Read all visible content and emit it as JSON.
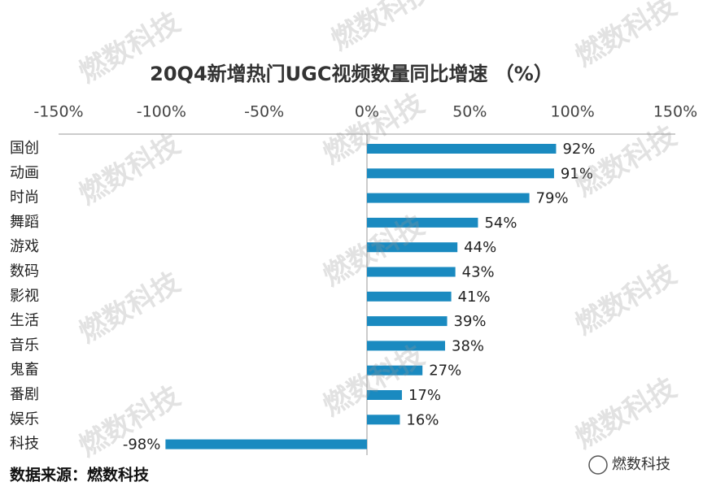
{
  "chart_data": {
    "type": "bar",
    "title": "20Q4新增热门UGC视频数量同比增速 （%）",
    "categories": [
      "国创",
      "动画",
      "时尚",
      "舞蹈",
      "游戏",
      "数码",
      "影视",
      "生活",
      "音乐",
      "鬼畜",
      "番剧",
      "娱乐",
      "科技"
    ],
    "values": [
      92,
      91,
      79,
      54,
      44,
      43,
      41,
      39,
      38,
      27,
      17,
      16,
      -98
    ],
    "value_labels": [
      "92%",
      "91%",
      "79%",
      "54%",
      "44%",
      "43%",
      "41%",
      "39%",
      "38%",
      "27%",
      "17%",
      "16%",
      "-98%"
    ],
    "color": "#1a8ac0",
    "xlim": [
      -150,
      150
    ],
    "xticks": [
      {
        "value": -150,
        "label": "-150%"
      },
      {
        "value": -100,
        "label": "-100%"
      },
      {
        "value": -50,
        "label": "-50%"
      },
      {
        "value": 0,
        "label": "0%"
      },
      {
        "value": 50,
        "label": "50%"
      },
      {
        "value": 100,
        "label": "100%"
      },
      {
        "value": 150,
        "label": "150%"
      }
    ]
  },
  "source": "数据来源：燃数科技",
  "logo": "燃数科技",
  "watermark": "燃数科技"
}
